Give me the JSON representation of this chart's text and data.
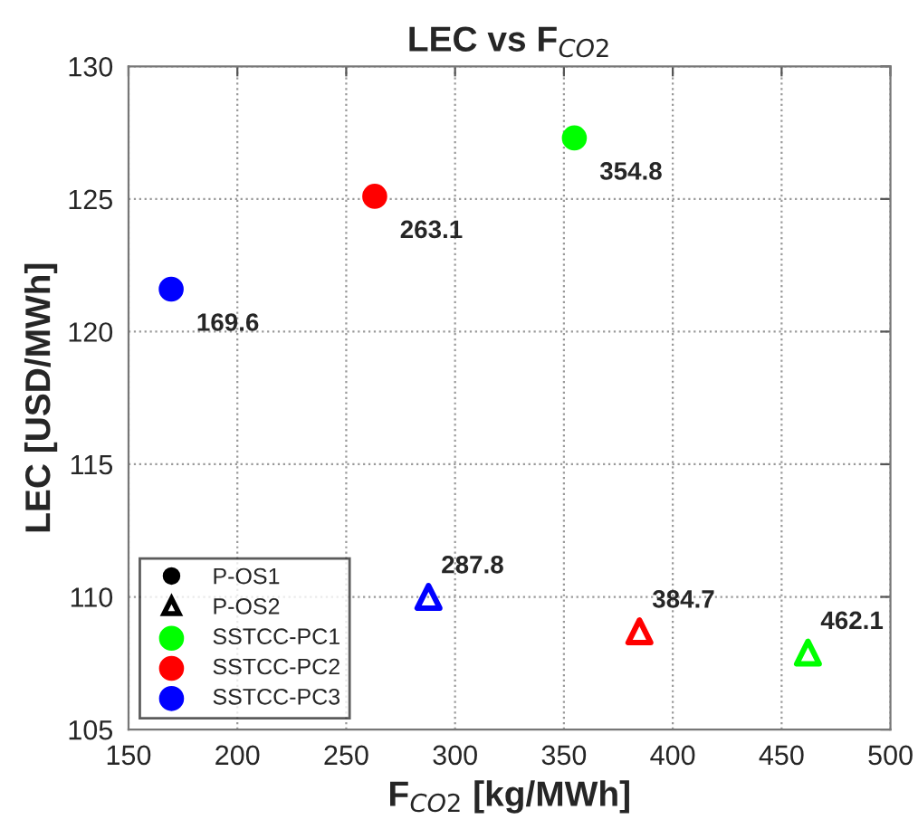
{
  "chart_data": {
    "type": "scatter",
    "title": "LEC vs F$_{CO2}$",
    "xlabel": "F$_{CO2}$ [kg/MWh]",
    "ylabel": "LEC [USD/MWh]",
    "xlim": [
      150,
      500
    ],
    "xticks": [
      150,
      200,
      250,
      300,
      350,
      400,
      450,
      500
    ],
    "ylim": [
      105,
      130
    ],
    "yticks": [
      105,
      110,
      115,
      120,
      125,
      130
    ],
    "grid": true,
    "legend": "bottom left",
    "series": [
      {
        "name": "SSTCC-PC1",
        "color": "#00ff00",
        "marker": [
          "circle",
          "triangle"
        ],
        "x": [
          354.8,
          462.1
        ],
        "values": [
          127.3,
          107.9
        ]
      },
      {
        "name": "SSTCC-PC2",
        "color": "#ff0000",
        "marker": [
          "circle",
          "triangle"
        ],
        "x": [
          263.1,
          384.7
        ],
        "values": [
          125.1,
          108.7
        ]
      },
      {
        "name": "SSTCC-PC3",
        "color": "#0000ff",
        "marker": [
          "circle",
          "triangle"
        ],
        "x": [
          169.6,
          287.8
        ],
        "values": [
          121.6,
          110.0
        ]
      }
    ],
    "annotations": [
      "P-OS1",
      "P-OS2",
      {
        "text": "354.8",
        "x": 354.8,
        "y": 127.3
      },
      {
        "text": "462.1",
        "x": 462.1,
        "y": 107.9
      },
      {
        "text": "263.1",
        "x": 263.1,
        "y": 125.1
      },
      {
        "text": "384.7",
        "x": 384.7,
        "y": 108.7
      },
      {
        "text": "169.6",
        "x": 169.6,
        "y": 121.6
      },
      {
        "text": "287.8",
        "x": 287.8,
        "y": 110.0
      }
    ]
  }
}
